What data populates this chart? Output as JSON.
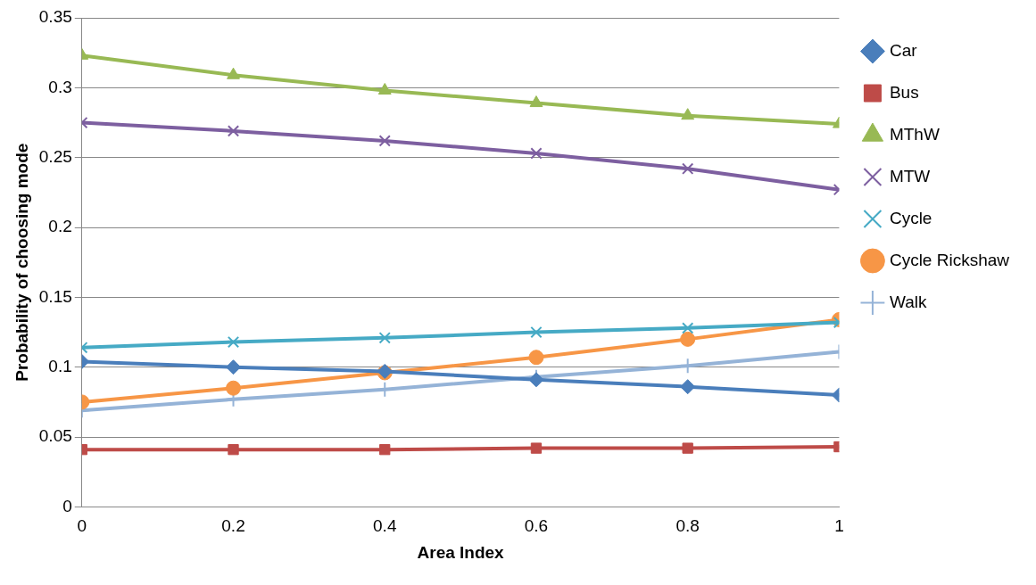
{
  "chart_data": {
    "type": "line",
    "xlabel": "Area Index",
    "ylabel": "Probability of choosing mode",
    "x": [
      0,
      0.2,
      0.4,
      0.6,
      0.8,
      1
    ],
    "xlim": [
      0,
      1
    ],
    "xticks": [
      0,
      0.2,
      0.4,
      0.6,
      0.8,
      {
        "value": 1,
        "label": "1"
      }
    ],
    "ylim": [
      0,
      0.35
    ],
    "yticks": [
      0,
      0.05,
      0.1,
      0.15,
      0.2,
      0.25,
      0.3,
      0.35
    ],
    "grid": "y",
    "legend": "right",
    "line_style": "solid",
    "series": [
      {
        "name": "Car",
        "color": "#4a7ebb",
        "marker": "diamond",
        "values": [
          0.104,
          0.1,
          0.097,
          0.091,
          0.086,
          0.08
        ]
      },
      {
        "name": "Bus",
        "color": "#be4b48",
        "marker": "square",
        "values": [
          0.041,
          0.041,
          0.041,
          0.042,
          0.042,
          0.043
        ]
      },
      {
        "name": "MThW",
        "color": "#98b954",
        "marker": "triangle",
        "values": [
          0.323,
          0.309,
          0.298,
          0.289,
          0.28,
          0.274
        ]
      },
      {
        "name": "MTW",
        "color": "#7d5fa0",
        "marker": "cross",
        "values": [
          0.275,
          0.269,
          0.262,
          0.253,
          0.242,
          0.227
        ]
      },
      {
        "name": "Cycle",
        "color": "#46aac5",
        "marker": "cross",
        "values": [
          0.114,
          0.118,
          0.121,
          0.125,
          0.128,
          0.132
        ]
      },
      {
        "name": "Cycle Rickshaw",
        "color": "#f79646",
        "marker": "circle",
        "values": [
          0.075,
          0.085,
          0.096,
          0.107,
          0.12,
          0.134
        ]
      },
      {
        "name": "Walk",
        "color": "#95b3d7",
        "marker": "plus",
        "values": [
          0.069,
          0.077,
          0.084,
          0.093,
          0.101,
          0.111
        ]
      }
    ]
  }
}
